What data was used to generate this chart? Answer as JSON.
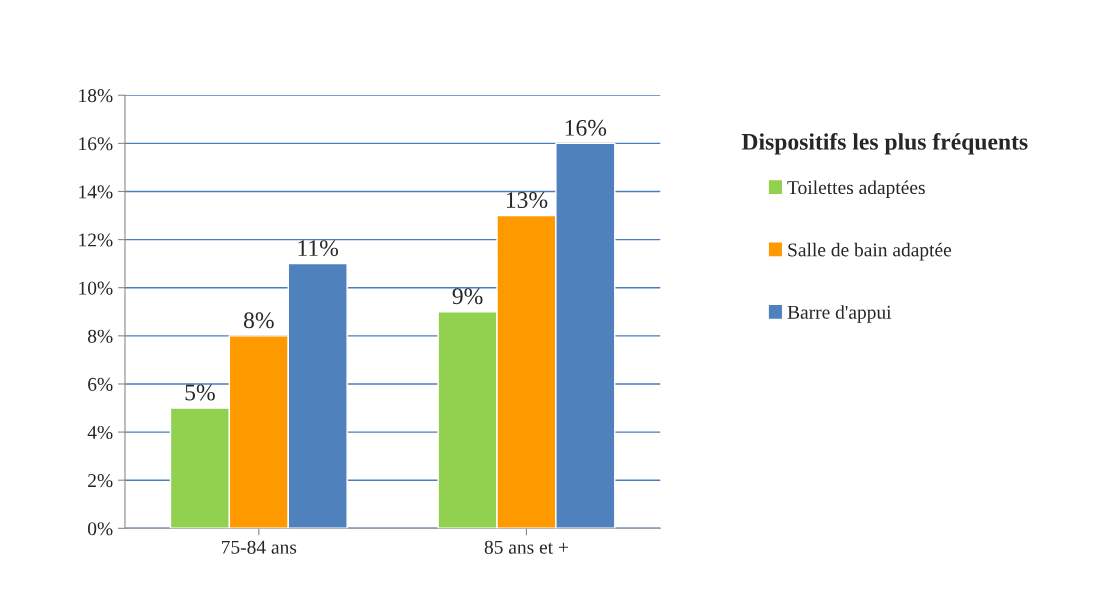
{
  "chart_data": {
    "type": "bar",
    "legend_title": "Dispositifs les plus fréquents",
    "categories": [
      "75-84 ans",
      "85 ans et +"
    ],
    "series": [
      {
        "name": "Toilettes adaptées",
        "color": "#92d050",
        "values": [
          5,
          9
        ],
        "value_labels": [
          "5%",
          "9%"
        ]
      },
      {
        "name": "Salle de bain adaptée",
        "color": "#ff9900",
        "values": [
          8,
          13
        ],
        "value_labels": [
          "8%",
          "13%"
        ]
      },
      {
        "name": "Barre d'appui",
        "color": "#4f81bd",
        "values": [
          11,
          16
        ],
        "value_labels": [
          "11%",
          "16%"
        ]
      }
    ],
    "ylim": [
      0,
      18
    ],
    "yticks": [
      {
        "value": 0,
        "label": "0%"
      },
      {
        "value": 2,
        "label": "2%"
      },
      {
        "value": 4,
        "label": "4%"
      },
      {
        "value": 6,
        "label": "6%"
      },
      {
        "value": 8,
        "label": "8%"
      },
      {
        "value": 10,
        "label": "10%"
      },
      {
        "value": 12,
        "label": "12%"
      },
      {
        "value": 14,
        "label": "14%"
      },
      {
        "value": 16,
        "label": "16%"
      },
      {
        "value": 18,
        "label": "18%"
      }
    ],
    "grid": "y",
    "legend": "right"
  }
}
